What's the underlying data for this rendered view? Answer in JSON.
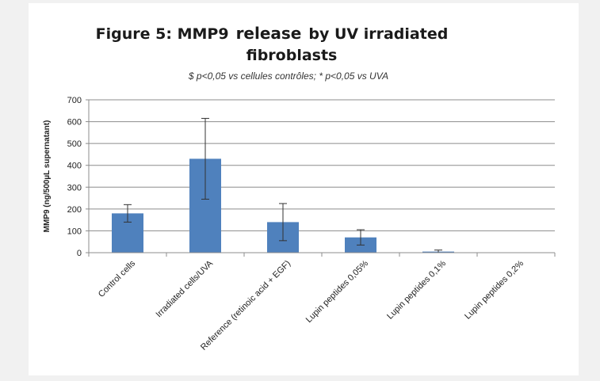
{
  "chart_data": {
    "type": "bar",
    "title_line1_part1": "Figure 5: MMP9",
    "title_line1_part2": "release",
    "title_line1_part3": "by UV irradiated",
    "title_line2": "fibroblasts",
    "subtitle": "$ p<0,05 vs cellules contrôles; * p<0,05 vs UVA",
    "xlabel": "",
    "ylabel": "MMP9 (ng/500µL supernatant)",
    "ylim": [
      0,
      700
    ],
    "yticks": [
      0,
      100,
      200,
      300,
      400,
      500,
      600,
      700
    ],
    "grid": true,
    "categories": [
      "Control cells",
      "Irradiated cells/UVA",
      "Reference (retinoic acid + EGF)",
      "Lupin peptides 0,05%",
      "Lupin peptides  0,1%",
      "Lupin peptides  0,2%"
    ],
    "values": [
      180,
      430,
      140,
      70,
      5,
      0
    ],
    "errors": [
      40,
      185,
      85,
      35,
      7,
      0
    ],
    "bar_color": "#4f81bd"
  }
}
